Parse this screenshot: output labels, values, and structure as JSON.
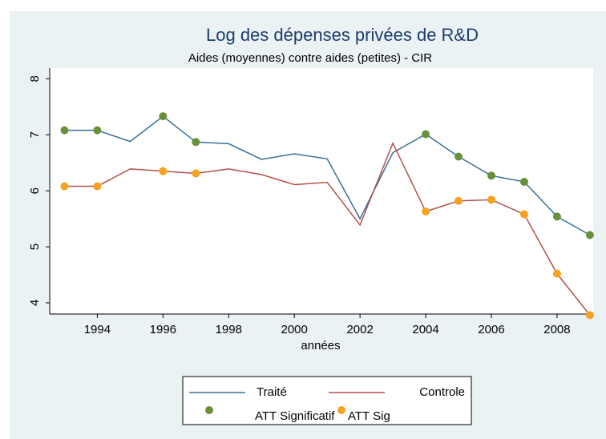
{
  "chart_data": {
    "type": "line",
    "title": "Log des dépenses privées de R&D",
    "subtitle": "Aides (moyennes) contre aides (petites) - CIR",
    "xlabel": "années",
    "x": [
      1993,
      1994,
      1995,
      1996,
      1997,
      1998,
      1999,
      2000,
      2001,
      2002,
      2003,
      2004,
      2005,
      2006,
      2007,
      2008,
      2009
    ],
    "series": [
      {
        "name": "Traité",
        "type": "line",
        "color": "#3a7096",
        "values": [
          7.08,
          7.08,
          6.88,
          7.33,
          6.87,
          6.84,
          6.56,
          6.66,
          6.57,
          5.5,
          6.68,
          7.01,
          6.61,
          6.27,
          6.16,
          5.54,
          5.21
        ]
      },
      {
        "name": "Controle",
        "type": "line",
        "color": "#b6504a",
        "values": [
          6.08,
          6.08,
          6.39,
          6.35,
          6.31,
          6.39,
          6.29,
          6.11,
          6.15,
          5.39,
          6.85,
          5.63,
          5.82,
          5.84,
          5.58,
          4.52,
          3.78
        ]
      },
      {
        "name": "ATT Significatif",
        "type": "scatter",
        "color": "#6a8f3a",
        "x": [
          1993,
          1994,
          1996,
          1997,
          2004,
          2005,
          2006,
          2007,
          2008,
          2009
        ],
        "values": [
          7.08,
          7.08,
          7.33,
          6.87,
          7.01,
          6.61,
          6.27,
          6.16,
          5.54,
          5.21
        ]
      },
      {
        "name": "ATT Sig",
        "type": "scatter",
        "color": "#f5a21f",
        "x": [
          1993,
          1994,
          1996,
          1997,
          2004,
          2005,
          2006,
          2007,
          2008,
          2009
        ],
        "values": [
          6.08,
          6.08,
          6.35,
          6.31,
          5.63,
          5.82,
          5.84,
          5.58,
          4.52,
          3.78
        ]
      }
    ],
    "xlim": [
      1992.55,
      2009.1
    ],
    "xticks": [
      1994,
      1996,
      1998,
      2000,
      2002,
      2004,
      2006,
      2008
    ],
    "ylim": [
      3.8,
      8.19
    ],
    "yticks": [
      4,
      5,
      6,
      7,
      8
    ],
    "grid": false,
    "legend": "bottom"
  }
}
